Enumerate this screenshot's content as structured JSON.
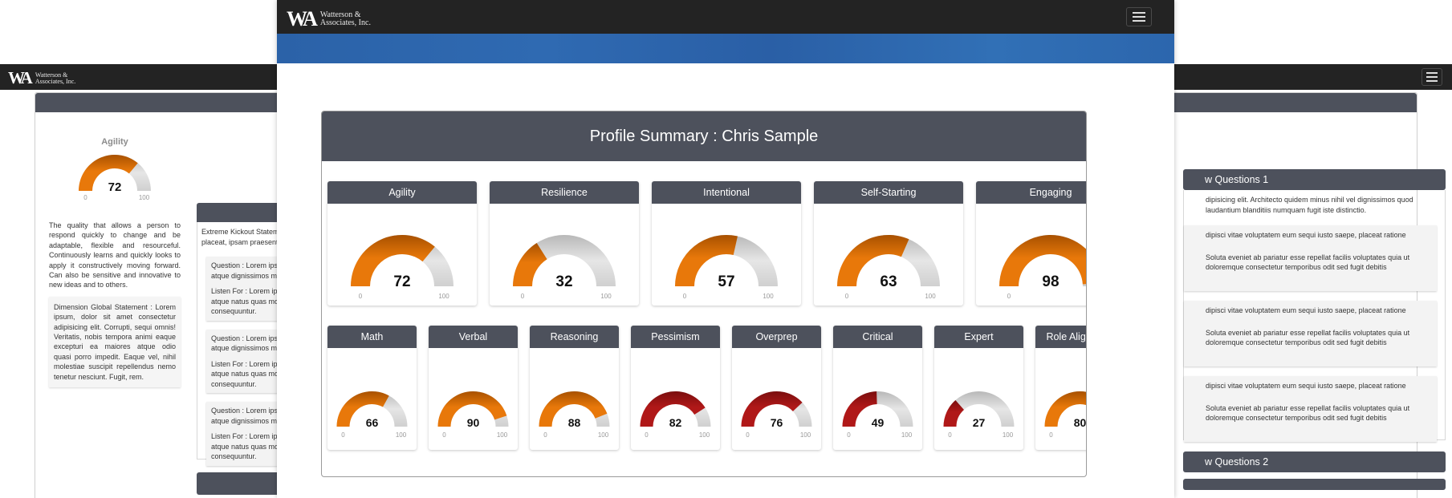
{
  "brand": {
    "logo_mark": "WA",
    "logo_line1": "Watterson &",
    "logo_line2": "Associates, Inc."
  },
  "colors": {
    "navbar": "#232323",
    "panel_header": "#4d515c",
    "gauge_orange": "#e8780a",
    "gauge_red": "#b01818",
    "gauge_track": "#d2d2d2",
    "hero_blue": "#2b62a8"
  },
  "icons": {
    "menu": "hamburger-icon"
  },
  "back_left": {
    "gauge_title": "Agility",
    "gauge_value": "72",
    "gauge_fill": 0.72,
    "scale_min": "0",
    "scale_max": "100",
    "description": "The quality that allows a person to respond quickly to change and be adaptable, flexible and resourceful. Continuously learns and quickly looks to apply it constructively moving forward. Can also be sensitive and innovative to new ideas and to others.",
    "dimension_statement": "Dimension Global Statement : Lorem ipsum, dolor sit amet consectetur adipisicing elit. Corrupti, sequi omnis! Veritatis, nobis tempora animi eaque excepturi ea maiores atque odio quasi porro impedit. Eaque vel, nihil molestiae suscipit repellendus nemo tenetur nesciunt. Fugit, rem."
  },
  "back_mid": {
    "statement": "Extreme Kickout Statem",
    "statement_line2": "placeat, ipsam praesent",
    "questions": [
      {
        "q": "Question : Lorem ips",
        "q2": "atque dignissimos m",
        "l": "Listen For : Lorem ip",
        "l2": "atque natus quas mo",
        "l3": "consequuntur."
      },
      {
        "q": "Question : Lorem ips",
        "q2": "atque dignissimos m",
        "l": "Listen For : Lorem ip",
        "l2": "atque natus quas mo",
        "l3": "consequuntur."
      },
      {
        "q": "Question : Lorem ips",
        "q2": "atque dignissimos m",
        "l": "Listen For : Lorem ip",
        "l2": "atque natus quas mo",
        "l3": "consequuntur."
      }
    ]
  },
  "back_right": {
    "header1": "w Questions 1",
    "statement": "dipisicing elit. Architecto quidem minus nihil vel dignissimos quod",
    "statement_line2": "laudantium blanditiis numquam fugit iste distinctio.",
    "cards": [
      {
        "q": "dipisci vitae voluptatem eum sequi iusto saepe, placeat ratione",
        "l": "Soluta eveniet ab pariatur esse repellat facilis voluptates quia ut",
        "l2": "doloremque consectetur temporibus odit sed fugit debitis"
      },
      {
        "q": "dipisci vitae voluptatem eum sequi iusto saepe, placeat ratione",
        "l": "Soluta eveniet ab pariatur esse repellat facilis voluptates quia ut",
        "l2": "doloremque consectetur temporibus odit sed fugit debitis"
      },
      {
        "q": "dipisci vitae voluptatem eum sequi iusto saepe, placeat ratione",
        "l": "Soluta eveniet ab pariatur esse repellat facilis voluptates quia ut",
        "l2": "doloremque consectetur temporibus odit sed fugit debitis"
      }
    ],
    "header2": "w Questions 2"
  },
  "summary": {
    "title": "Profile Summary : Chris Sample",
    "scale_min": "0",
    "scale_max": "100",
    "row1": [
      {
        "label": "Agility",
        "value": "72",
        "fill": 0.72,
        "color": "orange"
      },
      {
        "label": "Resilience",
        "value": "32",
        "fill": 0.32,
        "color": "orange"
      },
      {
        "label": "Intentional",
        "value": "57",
        "fill": 0.57,
        "color": "orange"
      },
      {
        "label": "Self-Starting",
        "value": "63",
        "fill": 0.63,
        "color": "orange"
      },
      {
        "label": "Engaging",
        "value": "98",
        "fill": 0.98,
        "color": "orange"
      }
    ],
    "row2": [
      {
        "label": "Math",
        "value": "66",
        "fill": 0.66,
        "color": "orange"
      },
      {
        "label": "Verbal",
        "value": "90",
        "fill": 0.9,
        "color": "orange"
      },
      {
        "label": "Reasoning",
        "value": "88",
        "fill": 0.88,
        "color": "orange"
      },
      {
        "label": "Pessimism",
        "value": "82",
        "fill": 0.82,
        "color": "red"
      },
      {
        "label": "Overprep",
        "value": "76",
        "fill": 0.76,
        "color": "red"
      },
      {
        "label": "Critical",
        "value": "49",
        "fill": 0.49,
        "color": "red"
      },
      {
        "label": "Expert",
        "value": "27",
        "fill": 0.27,
        "color": "red"
      },
      {
        "label": "Role Alignment",
        "value": "80",
        "fill": 0.8,
        "color": "orange"
      }
    ]
  }
}
